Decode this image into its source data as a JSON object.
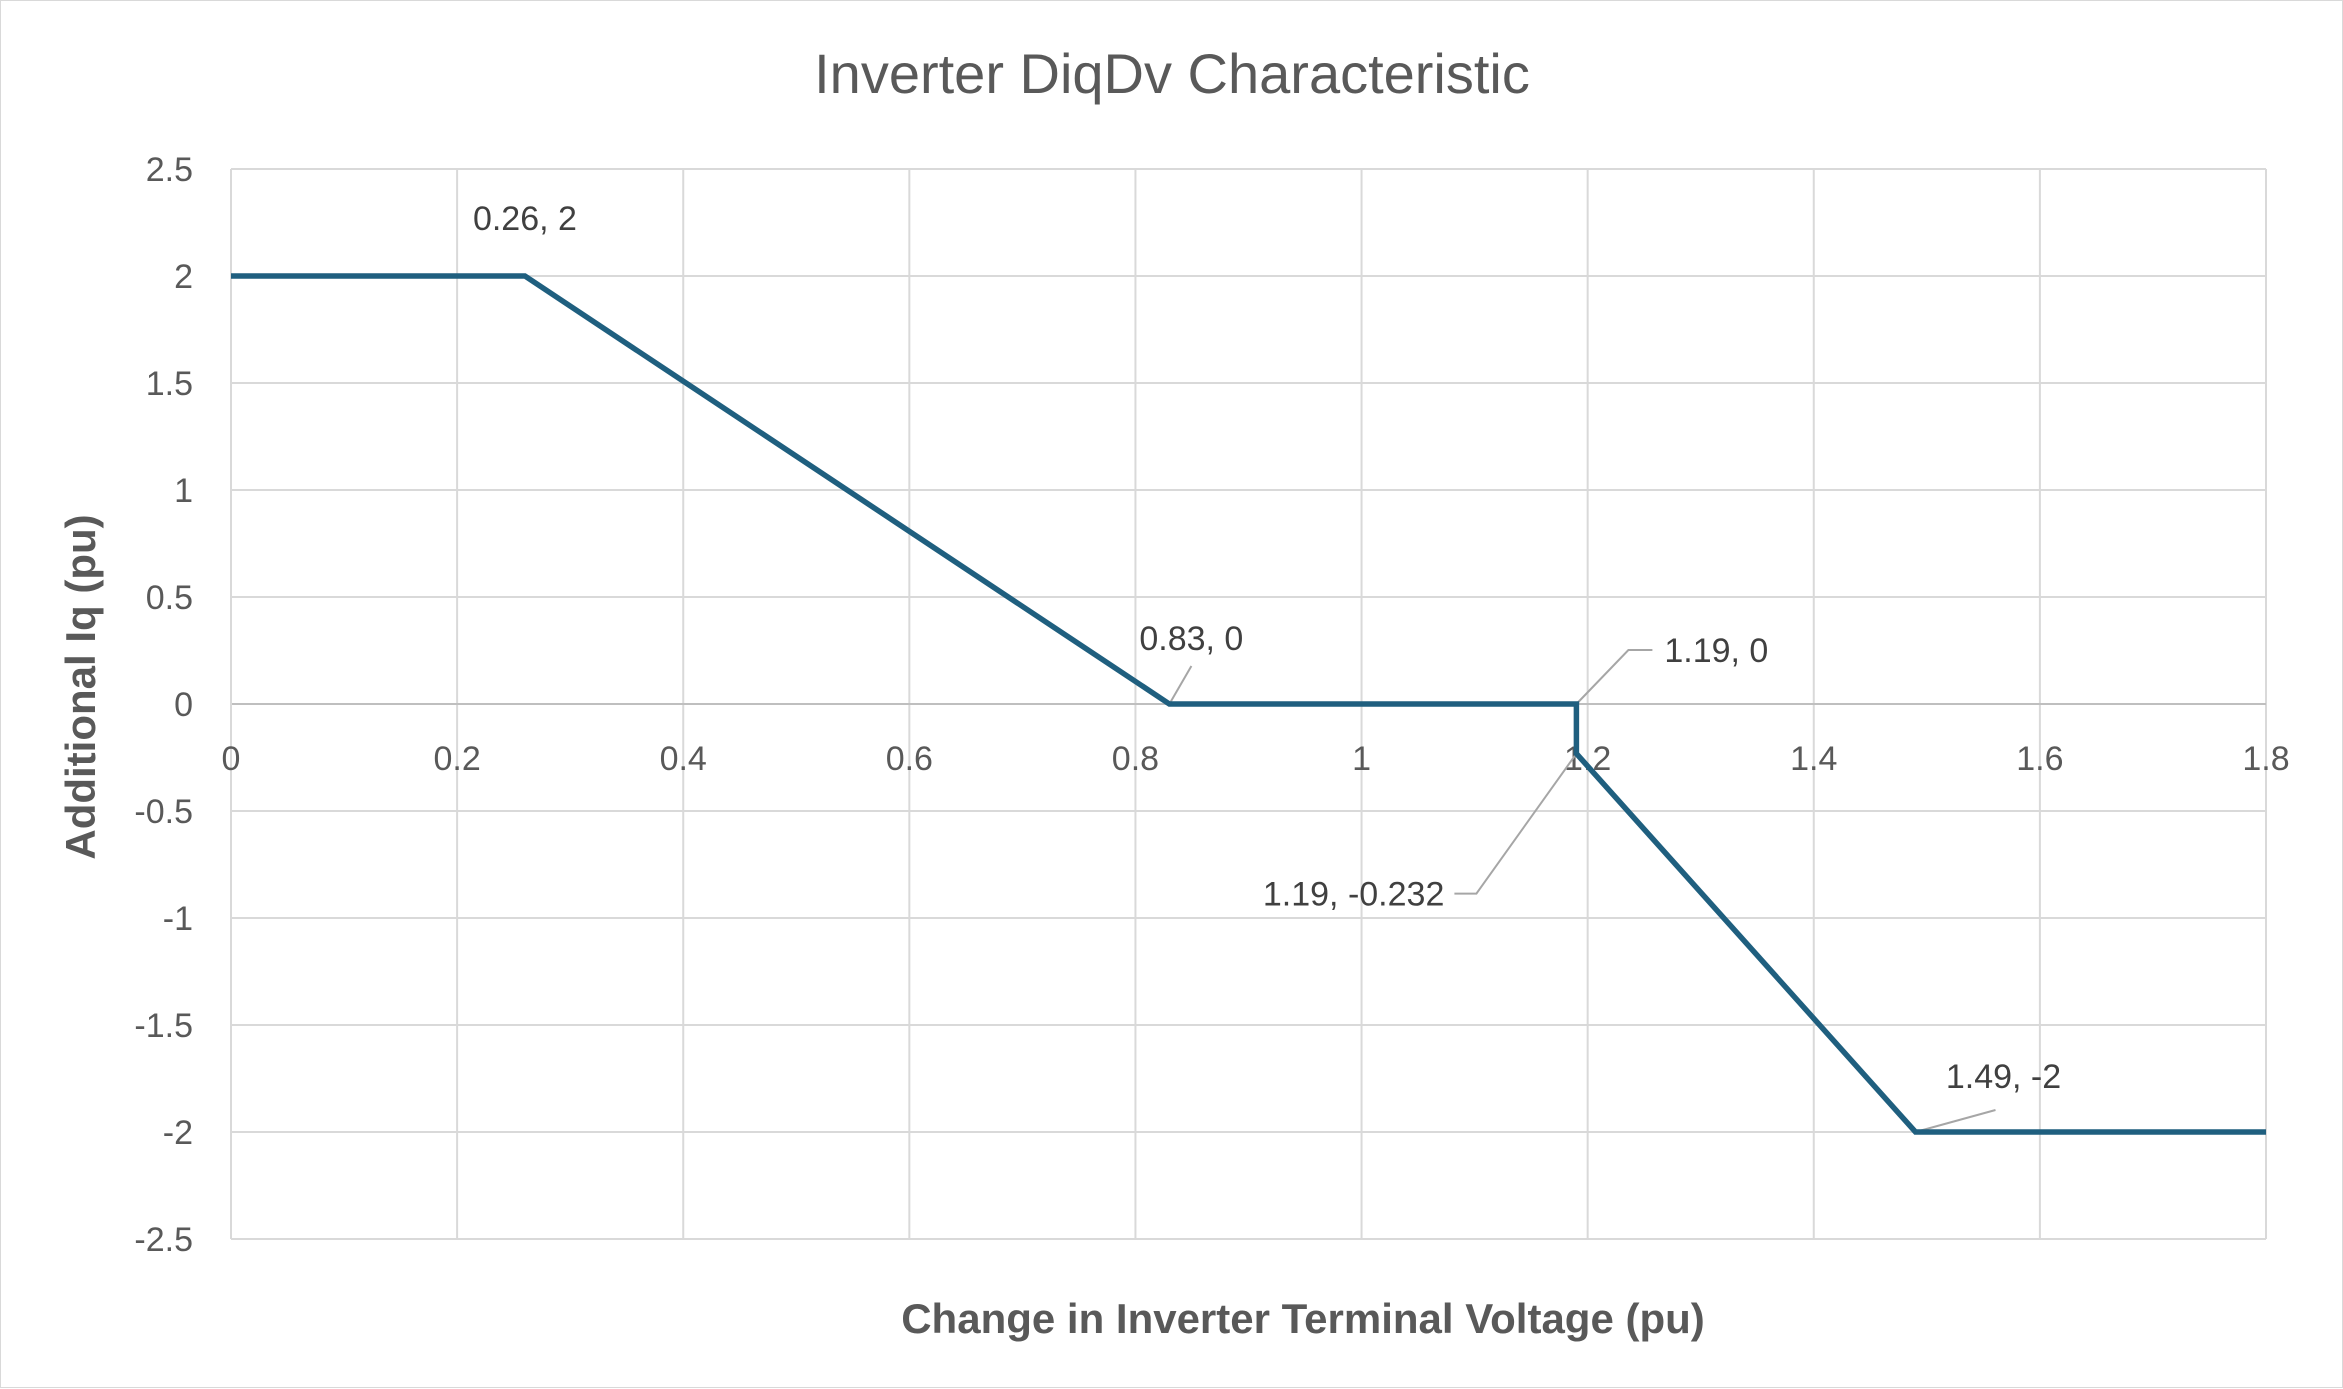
{
  "chart_data": {
    "type": "scatter",
    "title": "Inverter DiqDv Characteristic",
    "xlabel": "Change in Inverter Terminal Voltage (pu)",
    "ylabel": "Additional Iq (pu)",
    "xlim": [
      0,
      1.8
    ],
    "ylim": [
      -2.5,
      2.5
    ],
    "x_ticks": [
      0,
      0.2,
      0.4,
      0.6,
      0.8,
      1,
      1.2,
      1.4,
      1.6,
      1.8
    ],
    "x_tick_labels": [
      "0",
      "0.2",
      "0.4",
      "0.6",
      "0.8",
      "1",
      "1.2",
      "1.4",
      "1.6",
      "1.8"
    ],
    "y_ticks": [
      2.5,
      2,
      1.5,
      1,
      0.5,
      0,
      -0.5,
      -1,
      -1.5,
      -2,
      -2.5
    ],
    "y_tick_labels": [
      "2.5",
      "2",
      "1.5",
      "1",
      "0.5",
      "0",
      "-0.5",
      "-1",
      "-1.5",
      "-2",
      "-2.5"
    ],
    "grid": true,
    "legend": "none",
    "series": [
      {
        "color": "#1f5f7f",
        "line": true,
        "x": [
          0,
          0.26,
          0.83,
          1.19,
          1.19,
          1.49,
          1.8
        ],
        "y": [
          2,
          2,
          0,
          0,
          -0.232,
          -2,
          -2
        ]
      }
    ],
    "annotations": [
      {
        "text": "0.26, 2",
        "x": 0.26,
        "y": 2
      },
      {
        "text": "0.83, 0",
        "x": 0.83,
        "y": 0
      },
      {
        "text": "1.19, 0",
        "x": 1.19,
        "y": 0
      },
      {
        "text": "1.19, -0.232",
        "x": 1.19,
        "y": -0.232
      },
      {
        "text": "1.49, -2",
        "x": 1.49,
        "y": -2
      }
    ]
  }
}
